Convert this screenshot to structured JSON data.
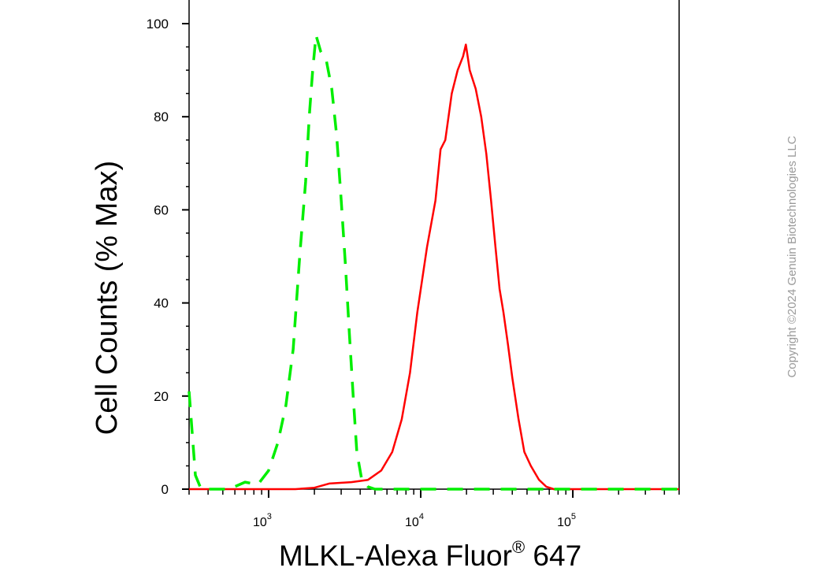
{
  "chart_data": {
    "type": "line",
    "title": "",
    "xlabel": {
      "main": "MLKL-Alexa Fluor",
      "superscript": "®",
      "suffix": " 647"
    },
    "ylabel": "Cell Counts (% Max)",
    "xscale": "log",
    "xlim": [
      300,
      500000
    ],
    "ylim": [
      0,
      100
    ],
    "yticks": [
      0,
      20,
      40,
      60,
      80,
      100
    ],
    "yticklabels": [
      "0",
      "20",
      "40",
      "60",
      "80",
      "100"
    ],
    "xticks": [
      {
        "value": 1000,
        "base": "10",
        "exp": "3"
      },
      {
        "value": 10000,
        "base": "10",
        "exp": "4"
      },
      {
        "value": 100000,
        "base": "10",
        "exp": "5"
      }
    ],
    "grid": false,
    "legend": "none",
    "series": [
      {
        "color": "#ff0000",
        "style": "solid",
        "points": [
          [
            300,
            0
          ],
          [
            1500,
            0
          ],
          [
            2000,
            0.3
          ],
          [
            2500,
            1.2
          ],
          [
            3500,
            1.5
          ],
          [
            4500,
            2
          ],
          [
            5500,
            4
          ],
          [
            6500,
            8
          ],
          [
            7500,
            15
          ],
          [
            8500,
            25
          ],
          [
            9500,
            38
          ],
          [
            11000,
            52
          ],
          [
            12500,
            62
          ],
          [
            13500,
            73
          ],
          [
            14500,
            75
          ],
          [
            16000,
            85
          ],
          [
            17500,
            90
          ],
          [
            19000,
            93
          ],
          [
            19800,
            95.5
          ],
          [
            21000,
            90
          ],
          [
            23000,
            86
          ],
          [
            25000,
            80
          ],
          [
            27000,
            72
          ],
          [
            29000,
            62
          ],
          [
            31000,
            52
          ],
          [
            33000,
            43
          ],
          [
            35000,
            38
          ],
          [
            37500,
            31
          ],
          [
            40000,
            24
          ],
          [
            44000,
            15
          ],
          [
            48000,
            8
          ],
          [
            53000,
            5
          ],
          [
            60000,
            2
          ],
          [
            67000,
            0.5
          ],
          [
            75000,
            0
          ],
          [
            500000,
            0
          ]
        ]
      },
      {
        "color": "#00ee00",
        "style": "dashed",
        "points": [
          [
            300,
            21
          ],
          [
            330,
            3
          ],
          [
            360,
            0
          ],
          [
            550,
            0
          ],
          [
            700,
            1.5
          ],
          [
            850,
            1
          ],
          [
            1000,
            4
          ],
          [
            1150,
            10
          ],
          [
            1300,
            18
          ],
          [
            1450,
            30
          ],
          [
            1600,
            50
          ],
          [
            1750,
            66
          ],
          [
            1850,
            80
          ],
          [
            1950,
            90
          ],
          [
            2050,
            97.5
          ],
          [
            2200,
            94
          ],
          [
            2400,
            92
          ],
          [
            2600,
            86
          ],
          [
            2800,
            76
          ],
          [
            3000,
            62
          ],
          [
            3200,
            48
          ],
          [
            3400,
            33
          ],
          [
            3600,
            20
          ],
          [
            3800,
            8
          ],
          [
            4100,
            2
          ],
          [
            4500,
            0.5
          ],
          [
            5000,
            0
          ],
          [
            500000,
            0
          ]
        ]
      }
    ]
  },
  "watermark": "Copyright ©2024 Genuin Biotechnologies LLC"
}
